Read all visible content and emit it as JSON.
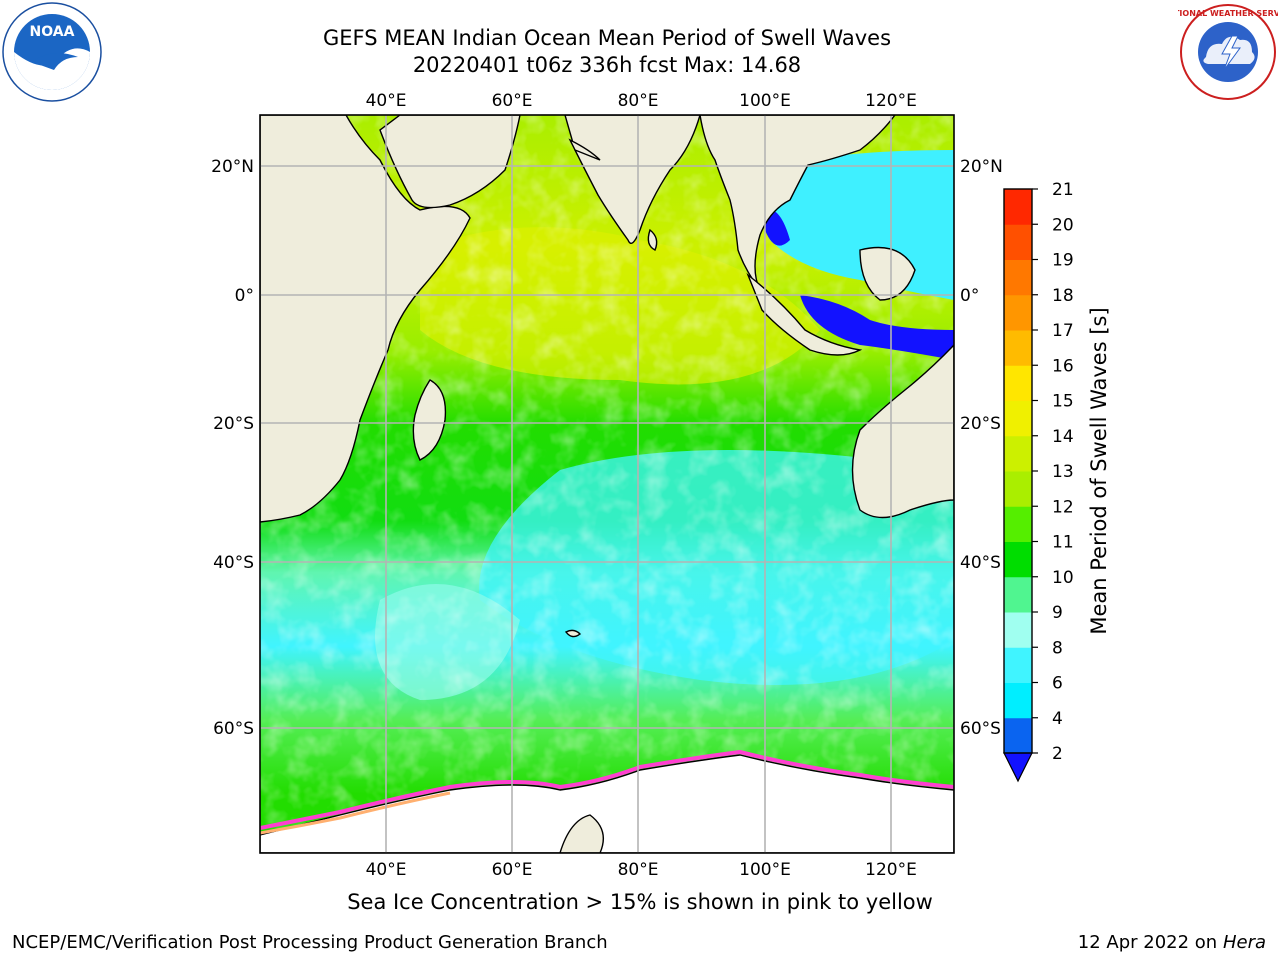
{
  "title": {
    "line1": "GEFS MEAN Indian Ocean Mean Period of Swell Waves",
    "line2": "20220401 t06z 336h fcst   Max: 14.68"
  },
  "logos": {
    "left": {
      "icon": "noaa-logo",
      "text": "NOAA"
    },
    "right": {
      "icon": "national-weather-service-logo",
      "text": "NATIONAL WEATHER SERVICE"
    }
  },
  "map": {
    "region": "Indian Ocean",
    "lon_range": [
      20,
      130
    ],
    "lat_range": [
      -72,
      28
    ],
    "lon_ticks": [
      "40°E",
      "60°E",
      "80°E",
      "100°E",
      "120°E"
    ],
    "lat_ticks": [
      "20°N",
      "0°",
      "20°S",
      "40°S",
      "60°S"
    ],
    "grid": true,
    "land_color": "#efeddc",
    "ice_color": "#ffffff"
  },
  "colorbar": {
    "label": "Mean Period of Swell Waves [s]",
    "ticks": [
      "2",
      "4",
      "6",
      "8",
      "9",
      "10",
      "11",
      "12",
      "13",
      "14",
      "15",
      "16",
      "17",
      "18",
      "19",
      "20",
      "21"
    ],
    "colors": [
      "#0a64f0",
      "#00eeff",
      "#40f4ff",
      "#a0fff0",
      "#50f590",
      "#00dd00",
      "#55ee00",
      "#aaee00",
      "#ccf000",
      "#f0f000",
      "#ffe600",
      "#ffbb00",
      "#ff9600",
      "#ff7800",
      "#ff5000",
      "#ff2800"
    ],
    "extend_color": "#1212ff"
  },
  "ice_note": "Sea Ice Concentration > 15% is shown in pink to yellow",
  "footer": {
    "left": "NCEP/EMC/Verification Post Processing Product Generation Branch",
    "date": "12 Apr 2022 on ",
    "host": "Hera"
  }
}
